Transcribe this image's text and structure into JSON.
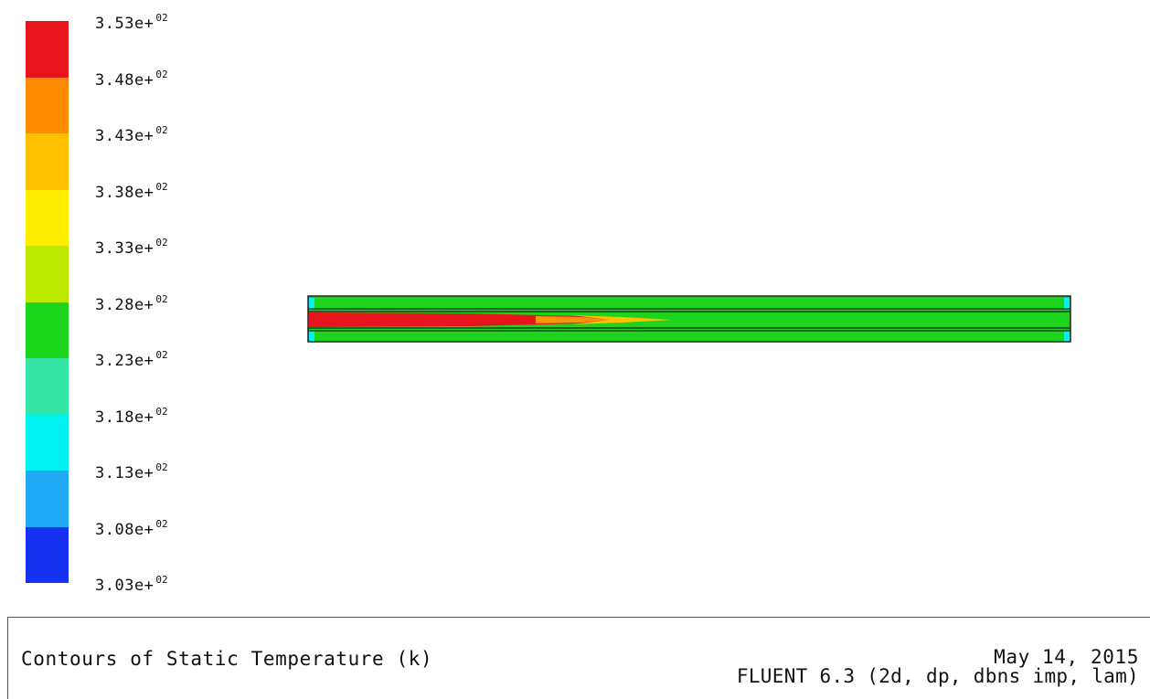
{
  "legend": {
    "colors": [
      "#e8141c",
      "#ff8c00",
      "#ffc000",
      "#ffee00",
      "#bde800",
      "#1bd41b",
      "#33e6a6",
      "#00f2f2",
      "#20aaf5",
      "#1432f0"
    ],
    "ticks": [
      {
        "mantissa": "3.53e+",
        "exp": "02"
      },
      {
        "mantissa": "3.48e+",
        "exp": "02"
      },
      {
        "mantissa": "3.43e+",
        "exp": "02"
      },
      {
        "mantissa": "3.38e+",
        "exp": "02"
      },
      {
        "mantissa": "3.33e+",
        "exp": "02"
      },
      {
        "mantissa": "3.28e+",
        "exp": "02"
      },
      {
        "mantissa": "3.23e+",
        "exp": "02"
      },
      {
        "mantissa": "3.18e+",
        "exp": "02"
      },
      {
        "mantissa": "3.13e+",
        "exp": "02"
      },
      {
        "mantissa": "3.08e+",
        "exp": "02"
      },
      {
        "mantissa": "3.03e+",
        "exp": "02"
      }
    ]
  },
  "contour_colors": {
    "hot": "#e8141c",
    "warm": "#ffc000",
    "mid": "#1bd41b",
    "cool": "#00f2f2",
    "outline": "#222222"
  },
  "caption": {
    "title": "Contours of Static Temperature (k)",
    "date": "May 14, 2015",
    "solver": "FLUENT 6.3 (2d, dp, dbns imp, lam)"
  }
}
